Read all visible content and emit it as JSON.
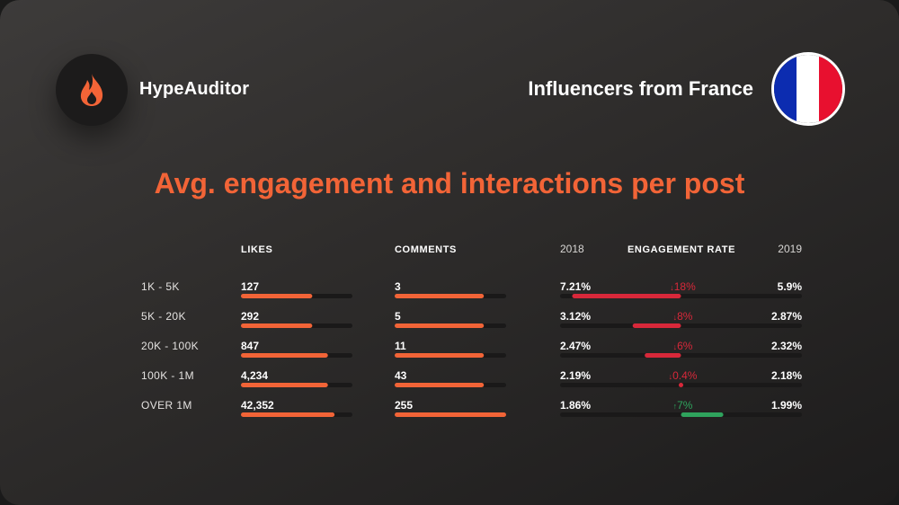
{
  "brand": {
    "name": "HypeAuditor",
    "icon": "flame-icon"
  },
  "header": {
    "region": "Influencers from France",
    "flag_icon": "france-flag-icon"
  },
  "colors": {
    "accent": "#f26437",
    "bar_track": "#1a1919",
    "decrease": "#d8283a",
    "increase": "#2fa35d",
    "flag_blue": "#0c2cb0",
    "flag_red": "#e8102f"
  },
  "chart_data": {
    "type": "table",
    "title": "Avg. engagement and interactions per post",
    "columns": {
      "tier": "",
      "likes": "LIKES",
      "comments": "COMMENTS",
      "er_year_start": "2018",
      "er": "ENGAGEMENT RATE",
      "er_year_end": "2019"
    },
    "rows": [
      {
        "tier": "1K - 5K",
        "likes": "127",
        "likes_fill": 0.64,
        "comments": "3",
        "comments_fill": 0.8,
        "er_2018": "7.21%",
        "change": "18%",
        "direction": "down",
        "er_2019": "5.9%"
      },
      {
        "tier": "5K - 20K",
        "likes": "292",
        "likes_fill": 0.64,
        "comments": "5",
        "comments_fill": 0.8,
        "er_2018": "3.12%",
        "change": "8%",
        "direction": "down",
        "er_2019": "2.87%"
      },
      {
        "tier": "20K - 100K",
        "likes": "847",
        "likes_fill": 0.78,
        "comments": "11",
        "comments_fill": 0.8,
        "er_2018": "2.47%",
        "change": "6%",
        "direction": "down",
        "er_2019": "2.32%"
      },
      {
        "tier": "100K - 1M",
        "likes": "4,234",
        "likes_fill": 0.78,
        "comments": "43",
        "comments_fill": 0.8,
        "er_2018": "2.19%",
        "change": "0.4%",
        "direction": "down",
        "er_2019": "2.18%"
      },
      {
        "tier": "OVER 1M",
        "likes": "42,352",
        "likes_fill": 0.84,
        "comments": "255",
        "comments_fill": 1.0,
        "er_2018": "1.86%",
        "change": "7%",
        "direction": "up",
        "er_2019": "1.99%"
      }
    ],
    "er_change_scale": {
      "min": -20,
      "max": 20
    }
  }
}
